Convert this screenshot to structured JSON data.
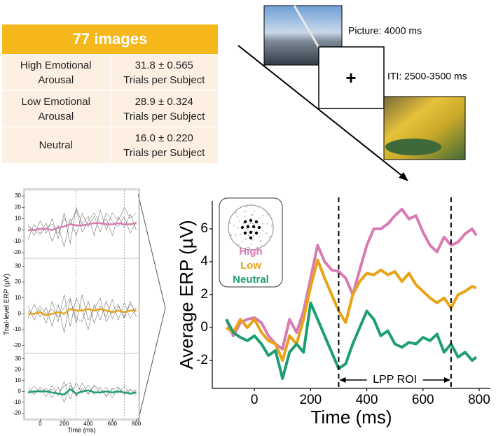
{
  "table": {
    "title": "77 images",
    "rows": [
      [
        [
          "High Emotional",
          "Arousal"
        ],
        [
          "31.8 ± 0.565",
          "Trials per Subject"
        ]
      ],
      [
        [
          "Low Emotional",
          "Arousal"
        ],
        [
          "28.9 ± 0.324",
          "Trials per Subject"
        ]
      ],
      [
        [
          "Neutral"
        ],
        [
          "16.0 ± 0.220",
          "Trials per Subject"
        ]
      ]
    ]
  },
  "paradigm": {
    "picture_label": "Picture: 4000 ms",
    "fixation": "+",
    "iti_label": "ITI: 2500-3500 ms"
  },
  "chart_data": [
    {
      "type": "line",
      "ylabel": "Trial-level ERP (µV)",
      "x": [
        -100,
        -50,
        0,
        50,
        100,
        150,
        200,
        250,
        300,
        350,
        400,
        450,
        500,
        550,
        600,
        650,
        700,
        750,
        800
      ],
      "xlim": [
        -130,
        820
      ],
      "ylim": [
        -25,
        35
      ],
      "yticks": [
        -20,
        -10,
        0,
        10,
        20,
        30
      ],
      "vlines": [
        300,
        700
      ],
      "series": [
        {
          "color": "#555555",
          "values": [
            5,
            -5,
            8,
            -3,
            10,
            -8,
            15,
            -12,
            20,
            5,
            12,
            -5,
            18,
            0,
            15,
            8,
            20,
            10,
            15
          ]
        },
        {
          "color": "#555555",
          "values": [
            -8,
            5,
            -3,
            6,
            -10,
            4,
            -15,
            10,
            -5,
            15,
            3,
            12,
            -2,
            15,
            8,
            3,
            12,
            -3,
            8
          ]
        },
        {
          "color": "#555555",
          "values": [
            3,
            0,
            -4,
            2,
            5,
            -3,
            10,
            5,
            18,
            -2,
            8,
            15,
            5,
            10,
            -5,
            12,
            2,
            14,
            0
          ]
        },
        {
          "color": "#d87bb2",
          "values": [
            0,
            0,
            1,
            1,
            0,
            2,
            3,
            5,
            4,
            4,
            5,
            6,
            6,
            5,
            5,
            6,
            5,
            5,
            6
          ]
        }
      ]
    },
    {
      "type": "line",
      "x": [
        -100,
        -50,
        0,
        50,
        100,
        150,
        200,
        250,
        300,
        350,
        400,
        450,
        500,
        550,
        600,
        650,
        700,
        750,
        800
      ],
      "xlim": [
        -130,
        820
      ],
      "ylim": [
        -25,
        35
      ],
      "yticks": [
        -20,
        -10,
        0,
        10,
        20,
        30
      ],
      "vlines": [
        300,
        700
      ],
      "series": [
        {
          "color": "#555555",
          "values": [
            5,
            -4,
            3,
            -6,
            8,
            -5,
            12,
            -8,
            10,
            2,
            -10,
            6,
            -4,
            8,
            -3,
            5,
            -2,
            6,
            1
          ]
        },
        {
          "color": "#555555",
          "values": [
            -3,
            6,
            -2,
            4,
            -8,
            6,
            -12,
            9,
            -3,
            -5,
            8,
            -6,
            5,
            -2,
            9,
            -4,
            7,
            -3,
            4
          ]
        },
        {
          "color": "#555555",
          "values": [
            2,
            -1,
            5,
            0,
            3,
            -2,
            4,
            10,
            -6,
            12,
            -4,
            3,
            10,
            -5,
            2,
            6,
            -3,
            8,
            -2
          ]
        },
        {
          "color": "#e8a317",
          "values": [
            0,
            0,
            1,
            -1,
            0,
            1,
            0,
            3,
            2,
            2,
            3,
            2,
            3,
            2,
            1,
            2,
            1,
            2,
            2
          ]
        }
      ]
    },
    {
      "type": "line",
      "xlabel": "Time (ms)",
      "x": [
        -100,
        -50,
        0,
        50,
        100,
        150,
        200,
        250,
        300,
        350,
        400,
        450,
        500,
        550,
        600,
        650,
        700,
        750,
        800
      ],
      "xlim": [
        -130,
        820
      ],
      "ylim": [
        -25,
        35
      ],
      "yticks": [
        -20,
        -10,
        0,
        10,
        20,
        30
      ],
      "xticks": [
        0,
        200,
        400,
        600,
        800
      ],
      "vlines": [
        300,
        700
      ],
      "series": [
        {
          "color": "#555555",
          "values": [
            4,
            -3,
            2,
            -5,
            6,
            -4,
            9,
            -7,
            8,
            -2,
            6,
            -3,
            4,
            -5,
            3,
            -2,
            5,
            -3,
            2
          ]
        },
        {
          "color": "#555555",
          "values": [
            -2,
            5,
            -1,
            3,
            -6,
            4,
            -10,
            6,
            -4,
            8,
            -3,
            5,
            -2,
            4,
            -6,
            3,
            -1,
            2,
            -4
          ]
        },
        {
          "color": "#555555",
          "values": [
            1,
            -2,
            4,
            0,
            2,
            -3,
            5,
            8,
            -5,
            3,
            -2,
            6,
            1,
            -4,
            2,
            4,
            -3,
            1,
            0
          ]
        },
        {
          "color": "#1e9e72",
          "values": [
            -1,
            0,
            0,
            0,
            -1,
            -2,
            -3,
            2,
            -2,
            0,
            1,
            -1,
            -1,
            0,
            -1,
            0,
            -1,
            -2,
            -1
          ]
        }
      ]
    },
    {
      "type": "line",
      "xlabel": "Time (ms)",
      "ylabel": "Average ERP (µV)",
      "annotation": "LPP ROI",
      "x": [
        -100,
        -75,
        -50,
        -25,
        0,
        25,
        50,
        75,
        100,
        125,
        150,
        175,
        200,
        225,
        250,
        275,
        300,
        325,
        350,
        375,
        400,
        425,
        450,
        475,
        500,
        525,
        550,
        575,
        600,
        625,
        650,
        675,
        700,
        725,
        750,
        775,
        790
      ],
      "xlim": [
        -150,
        840
      ],
      "ylim": [
        -3.7,
        7.7
      ],
      "xticks": [
        0,
        200,
        400,
        600,
        800
      ],
      "yticks": [
        -2,
        0,
        2,
        4,
        6
      ],
      "vlines": [
        300,
        700
      ],
      "series": [
        {
          "name": "High",
          "color": "#d87bb2",
          "values": [
            0.5,
            -0.5,
            0.3,
            0.5,
            0.6,
            0.3,
            -0.5,
            -1,
            -1.3,
            0.5,
            -0.3,
            1,
            3,
            5,
            4,
            3.5,
            3.4,
            3,
            2,
            3.5,
            5,
            6,
            6,
            6.3,
            6.8,
            7.2,
            6.6,
            6.8,
            5.8,
            5,
            4.6,
            5.5,
            5,
            5.2,
            5.7,
            6,
            5.6
          ]
        },
        {
          "name": "Low",
          "color": "#e8a317",
          "values": [
            0,
            -0.3,
            0.5,
            0,
            0.5,
            -0.3,
            -0.8,
            -1,
            -2,
            -0.5,
            -1,
            0.5,
            2.5,
            4.1,
            3,
            2,
            1,
            0.3,
            2,
            2.8,
            3.3,
            3.2,
            3.5,
            3.2,
            3.4,
            2.8,
            3.3,
            2.6,
            2.2,
            1.8,
            1.5,
            1.8,
            1.2,
            2,
            2.2,
            2.5,
            2.4
          ]
        },
        {
          "name": "Neutral",
          "color": "#1e9e72",
          "values": [
            0.5,
            -0.3,
            -0.6,
            -0.8,
            -0.5,
            -1,
            -1.7,
            -1.4,
            -3.1,
            -1.5,
            -1,
            -1.5,
            1.5,
            0.5,
            -0.5,
            -1.5,
            -2.5,
            -2.2,
            -1,
            0,
            1,
            0.5,
            -0.5,
            -0.2,
            -1,
            -1.2,
            -0.9,
            -1,
            -0.6,
            -0.8,
            -0.4,
            -1.5,
            -1,
            -1.8,
            -1.5,
            -2,
            -1.8
          ]
        }
      ]
    }
  ]
}
